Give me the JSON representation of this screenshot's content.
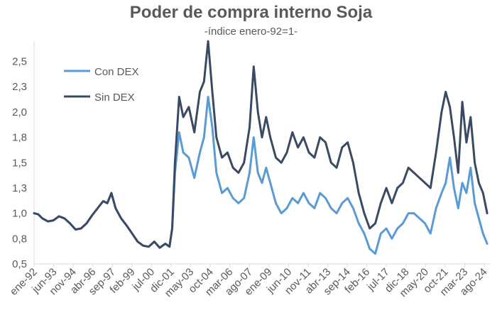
{
  "chart_data": {
    "type": "line",
    "title": "Poder de compra interno Soja",
    "subtitle": "-índice enero-92=1-",
    "xlabel": "",
    "ylabel": "",
    "ylim": [
      0.5,
      2.7
    ],
    "y_ticks": [
      "0,5",
      "0,8",
      "1,0",
      "1,3",
      "1,5",
      "1,8",
      "2,0",
      "2,3",
      "2,5"
    ],
    "y_tick_values": [
      0.5,
      0.75,
      1.0,
      1.25,
      1.5,
      1.75,
      2.0,
      2.25,
      2.5
    ],
    "x_ticks": [
      "ene-92",
      "jun-93",
      "nov-94",
      "abr-96",
      "sep-97",
      "feb-99",
      "jul-00",
      "dic-01",
      "may-03",
      "oct-04",
      "mar-06",
      "ago-07",
      "ene-09",
      "jun-10",
      "nov-11",
      "abr-13",
      "sep-14",
      "feb-16",
      "jul-17",
      "dic-18",
      "may-20",
      "oct-21",
      "mar-23",
      "ago-24"
    ],
    "x_tick_values": [
      1992.0,
      1993.42,
      1994.83,
      1996.25,
      1997.67,
      1999.08,
      2000.5,
      2001.92,
      2003.33,
      2004.75,
      2006.17,
      2007.58,
      2009.0,
      2010.42,
      2011.83,
      2013.25,
      2014.67,
      2016.08,
      2017.5,
      2018.92,
      2020.33,
      2021.75,
      2023.17,
      2024.58
    ],
    "x_range": [
      1992.0,
      2025.0
    ],
    "legend_position": "top-left",
    "grid": false,
    "series": [
      {
        "name": "Con DEX",
        "color": "#5b9bd5",
        "x": [
          1992.0,
          1992.3,
          1992.6,
          1993.0,
          1993.4,
          1993.8,
          1994.2,
          1994.6,
          1995.0,
          1995.4,
          1995.8,
          1996.2,
          1996.6,
          1997.0,
          1997.3,
          1997.6,
          1997.9,
          1998.3,
          1998.7,
          1999.1,
          1999.5,
          1999.9,
          2000.3,
          2000.7,
          2001.1,
          2001.5,
          2001.8,
          2002.0,
          2002.2,
          2002.5,
          2002.8,
          2003.2,
          2003.6,
          2004.0,
          2004.3,
          2004.6,
          2004.9,
          2005.2,
          2005.6,
          2006.0,
          2006.4,
          2006.8,
          2007.2,
          2007.6,
          2007.9,
          2008.2,
          2008.5,
          2008.8,
          2009.1,
          2009.5,
          2009.9,
          2010.3,
          2010.7,
          2011.1,
          2011.5,
          2011.9,
          2012.3,
          2012.7,
          2013.1,
          2013.5,
          2013.9,
          2014.3,
          2014.7,
          2015.1,
          2015.5,
          2015.9,
          2016.3,
          2016.7,
          2017.1,
          2017.5,
          2017.9,
          2018.3,
          2018.7,
          2019.1,
          2019.5,
          2019.9,
          2020.3,
          2020.7,
          2021.1,
          2021.5,
          2021.8,
          2022.1,
          2022.4,
          2022.7,
          2023.0,
          2023.3,
          2023.6,
          2023.9,
          2024.2,
          2024.5,
          2024.8
        ],
        "y": [
          1.0,
          0.99,
          0.95,
          0.92,
          0.93,
          0.97,
          0.95,
          0.9,
          0.84,
          0.85,
          0.9,
          0.98,
          1.05,
          1.12,
          1.1,
          1.2,
          1.05,
          0.95,
          0.88,
          0.8,
          0.72,
          0.68,
          0.67,
          0.72,
          0.66,
          0.7,
          0.67,
          0.85,
          1.4,
          1.8,
          1.6,
          1.55,
          1.35,
          1.6,
          1.75,
          2.15,
          1.85,
          1.4,
          1.2,
          1.25,
          1.15,
          1.1,
          1.15,
          1.4,
          1.75,
          1.4,
          1.3,
          1.45,
          1.3,
          1.1,
          1.0,
          1.05,
          1.15,
          1.1,
          1.2,
          1.1,
          1.05,
          1.2,
          1.15,
          1.05,
          1.0,
          1.1,
          1.15,
          1.05,
          0.9,
          0.8,
          0.65,
          0.6,
          0.8,
          0.85,
          0.75,
          0.85,
          0.9,
          1.0,
          1.0,
          0.95,
          0.9,
          0.8,
          1.05,
          1.2,
          1.3,
          1.55,
          1.25,
          1.05,
          1.3,
          1.2,
          1.45,
          1.1,
          0.95,
          0.8,
          0.7
        ]
      },
      {
        "name": "Sin DEX",
        "color": "#3a4a63",
        "x": [
          1992.0,
          1992.3,
          1992.6,
          1993.0,
          1993.4,
          1993.8,
          1994.2,
          1994.6,
          1995.0,
          1995.4,
          1995.8,
          1996.2,
          1996.6,
          1997.0,
          1997.3,
          1997.6,
          1997.9,
          1998.3,
          1998.7,
          1999.1,
          1999.5,
          1999.9,
          2000.3,
          2000.7,
          2001.1,
          2001.5,
          2001.8,
          2002.0,
          2002.2,
          2002.5,
          2002.8,
          2003.2,
          2003.6,
          2004.0,
          2004.3,
          2004.6,
          2004.9,
          2005.2,
          2005.6,
          2006.0,
          2006.4,
          2006.8,
          2007.2,
          2007.6,
          2007.9,
          2008.2,
          2008.5,
          2008.8,
          2009.1,
          2009.5,
          2009.9,
          2010.3,
          2010.7,
          2011.1,
          2011.5,
          2011.9,
          2012.3,
          2012.7,
          2013.1,
          2013.5,
          2013.9,
          2014.3,
          2014.7,
          2015.1,
          2015.5,
          2015.9,
          2016.3,
          2016.7,
          2017.1,
          2017.5,
          2017.9,
          2018.3,
          2018.7,
          2019.1,
          2019.5,
          2019.9,
          2020.3,
          2020.7,
          2021.1,
          2021.5,
          2021.8,
          2022.1,
          2022.4,
          2022.7,
          2023.0,
          2023.3,
          2023.6,
          2023.9,
          2024.2,
          2024.5,
          2024.8
        ],
        "y": [
          1.0,
          0.99,
          0.95,
          0.92,
          0.93,
          0.97,
          0.95,
          0.9,
          0.84,
          0.85,
          0.9,
          0.98,
          1.05,
          1.12,
          1.1,
          1.2,
          1.05,
          0.95,
          0.88,
          0.8,
          0.72,
          0.68,
          0.67,
          0.72,
          0.66,
          0.7,
          0.67,
          0.85,
          1.5,
          2.15,
          1.95,
          2.05,
          1.8,
          2.2,
          2.3,
          2.7,
          2.2,
          1.75,
          1.55,
          1.6,
          1.45,
          1.4,
          1.5,
          1.85,
          2.45,
          2.0,
          1.75,
          1.95,
          1.75,
          1.55,
          1.5,
          1.6,
          1.8,
          1.65,
          1.75,
          1.6,
          1.55,
          1.75,
          1.7,
          1.5,
          1.45,
          1.65,
          1.7,
          1.5,
          1.2,
          1.0,
          0.85,
          0.9,
          1.1,
          1.25,
          1.1,
          1.25,
          1.3,
          1.45,
          1.4,
          1.35,
          1.3,
          1.25,
          1.6,
          2.0,
          2.2,
          2.05,
          1.75,
          1.4,
          2.1,
          1.7,
          1.95,
          1.5,
          1.3,
          1.2,
          1.0
        ]
      }
    ]
  }
}
